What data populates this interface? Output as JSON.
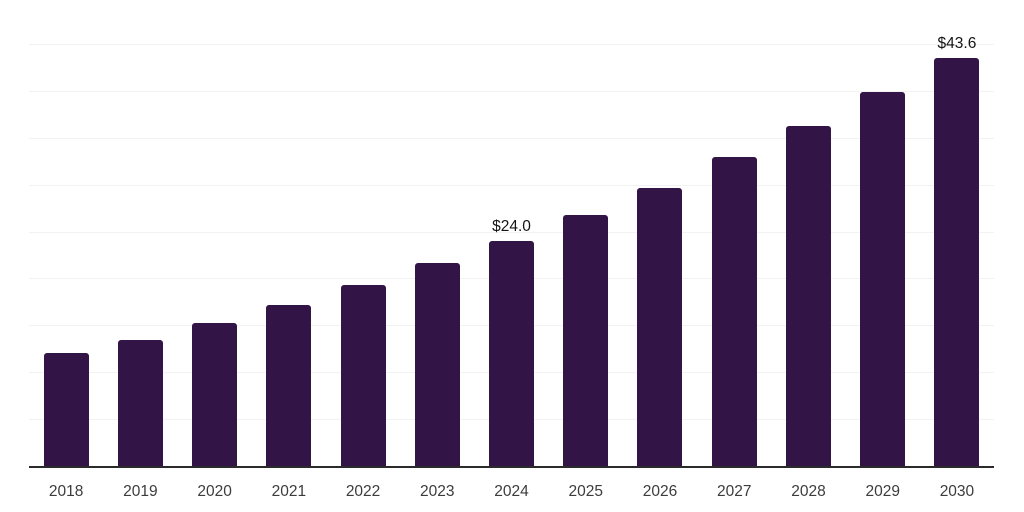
{
  "chart_data": {
    "type": "bar",
    "title": "",
    "xlabel": "",
    "ylabel": "",
    "categories": [
      "2018",
      "2019",
      "2020",
      "2021",
      "2022",
      "2023",
      "2024",
      "2025",
      "2026",
      "2027",
      "2028",
      "2029",
      "2030"
    ],
    "values": [
      12.1,
      13.5,
      15.3,
      17.2,
      19.3,
      21.7,
      24.0,
      26.8,
      29.7,
      33.0,
      36.3,
      40.0,
      43.6
    ],
    "value_labels": {
      "2024": "$24.0",
      "2030": "$43.6"
    },
    "ylim": [
      0,
      50
    ],
    "gridline_step": 5,
    "grid": "horizontal",
    "legend_position": "none",
    "colors": {
      "bar": "#321447",
      "axis": "#2b2b2b",
      "gridline": "#f2f2f2",
      "tick_label": "#3c3c3c",
      "value_label": "#141414",
      "background": "#ffffff"
    }
  }
}
